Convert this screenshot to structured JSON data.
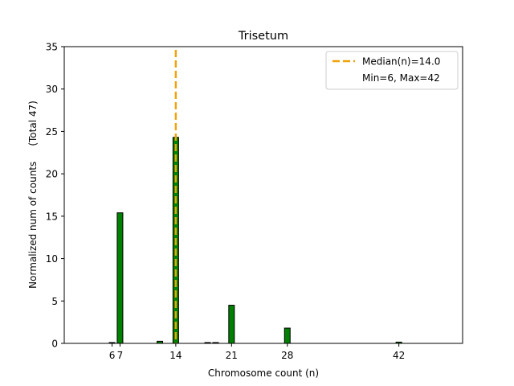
{
  "chart_data": {
    "type": "bar",
    "title": "Trisetum",
    "xlabel": "Chromosome count (n)",
    "ylabel": "Normalized num of counts     (Total 47)",
    "xlim": [
      0,
      50
    ],
    "ylim": [
      0,
      35
    ],
    "yticks": [
      0,
      5,
      10,
      15,
      20,
      25,
      30,
      35
    ],
    "xticks": [
      6,
      7,
      14,
      21,
      28,
      42
    ],
    "xtick_labels": [
      "6",
      "7",
      "14",
      "21",
      "28",
      "42"
    ],
    "bar_color": "#008000",
    "bars": [
      {
        "x": 6,
        "value": 0.1
      },
      {
        "x": 7,
        "value": 15.4
      },
      {
        "x": 12,
        "value": 0.25
      },
      {
        "x": 14,
        "value": 24.3
      },
      {
        "x": 18,
        "value": 0.1
      },
      {
        "x": 19,
        "value": 0.1
      },
      {
        "x": 21,
        "value": 4.5
      },
      {
        "x": 28,
        "value": 1.8
      },
      {
        "x": 42,
        "value": 0.15
      }
    ],
    "median": {
      "value": 14.0,
      "color": "#f0a30a"
    },
    "legend": {
      "position": "top-right",
      "entries": [
        "Median(n)=14.0",
        "Min=6, Max=42"
      ]
    }
  }
}
